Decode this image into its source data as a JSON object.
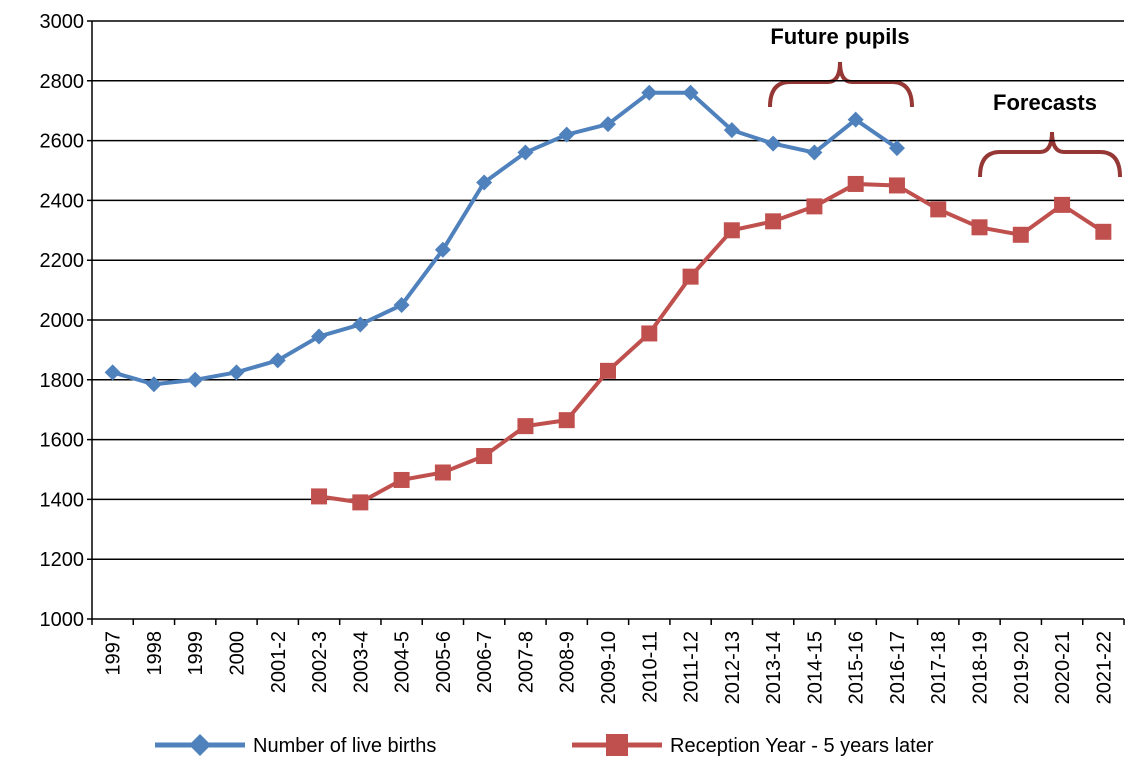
{
  "chart_data": {
    "type": "line",
    "categories": [
      "1997",
      "1998",
      "1999",
      "2000",
      "2001-2",
      "2002-3",
      "2003-4",
      "2004-5",
      "2005-6",
      "2006-7",
      "2007-8",
      "2008-9",
      "2009-10",
      "2010-11",
      "2011-12",
      "2012-13",
      "2013-14",
      "2014-15",
      "2015-16",
      "2016-17",
      "2017-18",
      "2018-19",
      "2019-20",
      "2020-21",
      "2021-22"
    ],
    "series": [
      {
        "name": "Number of live births",
        "color": "#4f81bd",
        "marker": "diamond",
        "values": [
          1825,
          1785,
          1800,
          1825,
          1865,
          1945,
          1985,
          2050,
          2235,
          2460,
          2560,
          2620,
          2655,
          2760,
          2760,
          2635,
          2590,
          2560,
          2670,
          2575,
          null,
          null,
          null,
          null,
          null
        ]
      },
      {
        "name": "Reception Year - 5 years later",
        "color": "#c0504d",
        "marker": "square",
        "values": [
          null,
          null,
          null,
          null,
          null,
          1410,
          1390,
          1465,
          1490,
          1545,
          1645,
          1665,
          1830,
          1955,
          2145,
          2300,
          2330,
          2380,
          2455,
          2450,
          2370,
          2310,
          2285,
          2385,
          2295
        ]
      }
    ],
    "ylim": [
      1000,
      3000
    ],
    "yticks": [
      1000,
      1200,
      1400,
      1600,
      1800,
      2000,
      2200,
      2400,
      2600,
      2800,
      3000
    ],
    "grid": true,
    "legend": "bottom",
    "annotations": [
      "Future pupils",
      "Forecasts"
    ]
  }
}
